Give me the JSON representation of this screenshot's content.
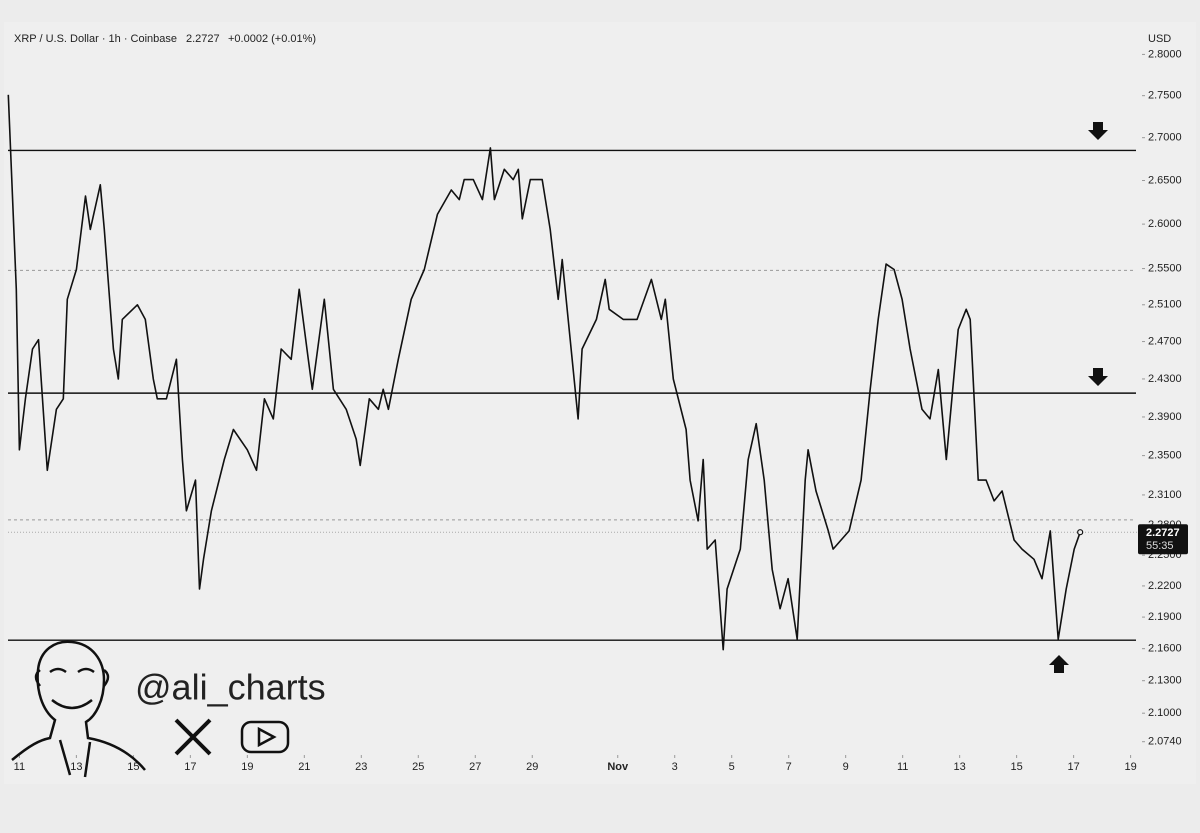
{
  "chart_data": {
    "type": "line",
    "symbol": "XRP / U.S. Dollar · 1h · Coinbase",
    "last_price": 2.2727,
    "change": "+0.0002 (+0.01%)",
    "countdown": "55:35",
    "y_axis_label": "USD",
    "watermark": "@ali_charts",
    "log_scale": true,
    "grid": false,
    "color": "#111111",
    "xlim": [
      -0.4,
      39.4
    ],
    "xticks": [
      {
        "value": 0,
        "label": "11"
      },
      {
        "value": 2,
        "label": "13"
      },
      {
        "value": 4,
        "label": "15"
      },
      {
        "value": 6,
        "label": "17"
      },
      {
        "value": 8,
        "label": "19"
      },
      {
        "value": 10,
        "label": "21"
      },
      {
        "value": 12,
        "label": "23"
      },
      {
        "value": 14,
        "label": "25"
      },
      {
        "value": 16,
        "label": "27"
      },
      {
        "value": 18,
        "label": "29"
      },
      {
        "value": 21,
        "label": "Nov"
      },
      {
        "value": 23,
        "label": "3"
      },
      {
        "value": 25,
        "label": "5"
      },
      {
        "value": 27,
        "label": "7"
      },
      {
        "value": 29,
        "label": "9"
      },
      {
        "value": 31,
        "label": "11"
      },
      {
        "value": 33,
        "label": "13"
      },
      {
        "value": 35,
        "label": "15"
      },
      {
        "value": 37,
        "label": "17"
      },
      {
        "value": 39,
        "label": "19"
      }
    ],
    "ylim": [
      2.062,
      2.83
    ],
    "yticks": [
      {
        "value": 2.8,
        "label": "2.8000"
      },
      {
        "value": 2.75,
        "label": "2.7500"
      },
      {
        "value": 2.7,
        "label": "2.7000"
      },
      {
        "value": 2.65,
        "label": "2.6500"
      },
      {
        "value": 2.6,
        "label": "2.6000"
      },
      {
        "value": 2.55,
        "label": "2.5500"
      },
      {
        "value": 2.51,
        "label": "2.5100"
      },
      {
        "value": 2.47,
        "label": "2.4700"
      },
      {
        "value": 2.43,
        "label": "2.4300"
      },
      {
        "value": 2.39,
        "label": "2.3900"
      },
      {
        "value": 2.35,
        "label": "2.3500"
      },
      {
        "value": 2.31,
        "label": "2.3100"
      },
      {
        "value": 2.28,
        "label": "2.2800"
      },
      {
        "value": 2.25,
        "label": "2.2500"
      },
      {
        "value": 2.22,
        "label": "2.2200"
      },
      {
        "value": 2.19,
        "label": "2.1900"
      },
      {
        "value": 2.16,
        "label": "2.1600"
      },
      {
        "value": 2.13,
        "label": "2.1300"
      },
      {
        "value": 2.1,
        "label": "2.1000"
      },
      {
        "value": 2.074,
        "label": "2.0740"
      }
    ],
    "levels": [
      {
        "value": 2.685,
        "style": "solid"
      },
      {
        "value": 2.548,
        "style": "dashed"
      },
      {
        "value": 2.415,
        "style": "solid"
      },
      {
        "value": 2.285,
        "style": "dashed"
      },
      {
        "value": 2.168,
        "style": "solid"
      }
    ],
    "x": [
      -0.39,
      -0.11,
      0,
      0.21,
      0.46,
      0.67,
      0.98,
      1.3,
      1.54,
      1.68,
      2,
      2.32,
      2.49,
      2.84,
      2.98,
      3.3,
      3.47,
      3.61,
      4.14,
      4.42,
      4.7,
      4.84,
      5.16,
      5.51,
      5.72,
      5.86,
      6.18,
      6.32,
      6.46,
      6.74,
      7.19,
      7.51,
      8,
      8.32,
      8.6,
      8.91,
      9.19,
      9.54,
      9.82,
      10.14,
      10.28,
      10.7,
      11.02,
      11.47,
      11.82,
      11.96,
      12.28,
      12.6,
      12.77,
      12.95,
      13.3,
      13.75,
      14.21,
      14.67,
      15.16,
      15.44,
      15.61,
      15.93,
      16.25,
      16.53,
      16.67,
      17.02,
      17.33,
      17.51,
      17.65,
      17.93,
      18.35,
      18.63,
      18.91,
      19.05,
      19.33,
      19.61,
      19.75,
      20.25,
      20.56,
      20.7,
      21.19,
      21.68,
      22.18,
      22.53,
      22.67,
      22.95,
      23.4,
      23.54,
      23.82,
      24,
      24.14,
      24.42,
      24.7,
      24.84,
      25.3,
      25.58,
      25.86,
      26.14,
      26.42,
      26.7,
      26.98,
      27.3,
      27.58,
      27.68,
      27.96,
      28.39,
      28.56,
      28.84,
      29.12,
      29.54,
      29.86,
      30.14,
      30.42,
      30.7,
      30.98,
      31.26,
      31.68,
      31.96,
      32.25,
      32.53,
      32.95,
      33.23,
      33.37,
      33.65,
      33.93,
      34.21,
      34.49,
      34.91,
      35.19,
      35.61,
      35.89,
      36.18,
      36.46,
      36.74,
      37.02,
      37.23
    ],
    "values": [
      2.751,
      2.527,
      2.356,
      2.409,
      2.462,
      2.472,
      2.335,
      2.398,
      2.409,
      2.516,
      2.549,
      2.632,
      2.594,
      2.645,
      2.594,
      2.462,
      2.43,
      2.494,
      2.51,
      2.494,
      2.43,
      2.409,
      2.409,
      2.451,
      2.346,
      2.294,
      2.325,
      2.217,
      2.246,
      2.294,
      2.346,
      2.377,
      2.356,
      2.335,
      2.409,
      2.388,
      2.462,
      2.451,
      2.527,
      2.451,
      2.419,
      2.516,
      2.419,
      2.398,
      2.367,
      2.34,
      2.409,
      2.398,
      2.419,
      2.398,
      2.451,
      2.516,
      2.549,
      2.611,
      2.639,
      2.628,
      2.651,
      2.651,
      2.628,
      2.688,
      2.628,
      2.663,
      2.651,
      2.663,
      2.606,
      2.651,
      2.651,
      2.594,
      2.516,
      2.56,
      2.472,
      2.388,
      2.462,
      2.494,
      2.538,
      2.505,
      2.494,
      2.494,
      2.538,
      2.494,
      2.516,
      2.43,
      2.377,
      2.325,
      2.284,
      2.346,
      2.256,
      2.265,
      2.159,
      2.217,
      2.256,
      2.346,
      2.383,
      2.325,
      2.236,
      2.198,
      2.227,
      2.169,
      2.325,
      2.356,
      2.314,
      2.274,
      2.256,
      2.265,
      2.274,
      2.325,
      2.419,
      2.494,
      2.555,
      2.549,
      2.516,
      2.462,
      2.398,
      2.388,
      2.44,
      2.346,
      2.483,
      2.505,
      2.494,
      2.325,
      2.325,
      2.304,
      2.314,
      2.265,
      2.256,
      2.246,
      2.227,
      2.274,
      2.169,
      2.217,
      2.256,
      2.2727
    ]
  }
}
